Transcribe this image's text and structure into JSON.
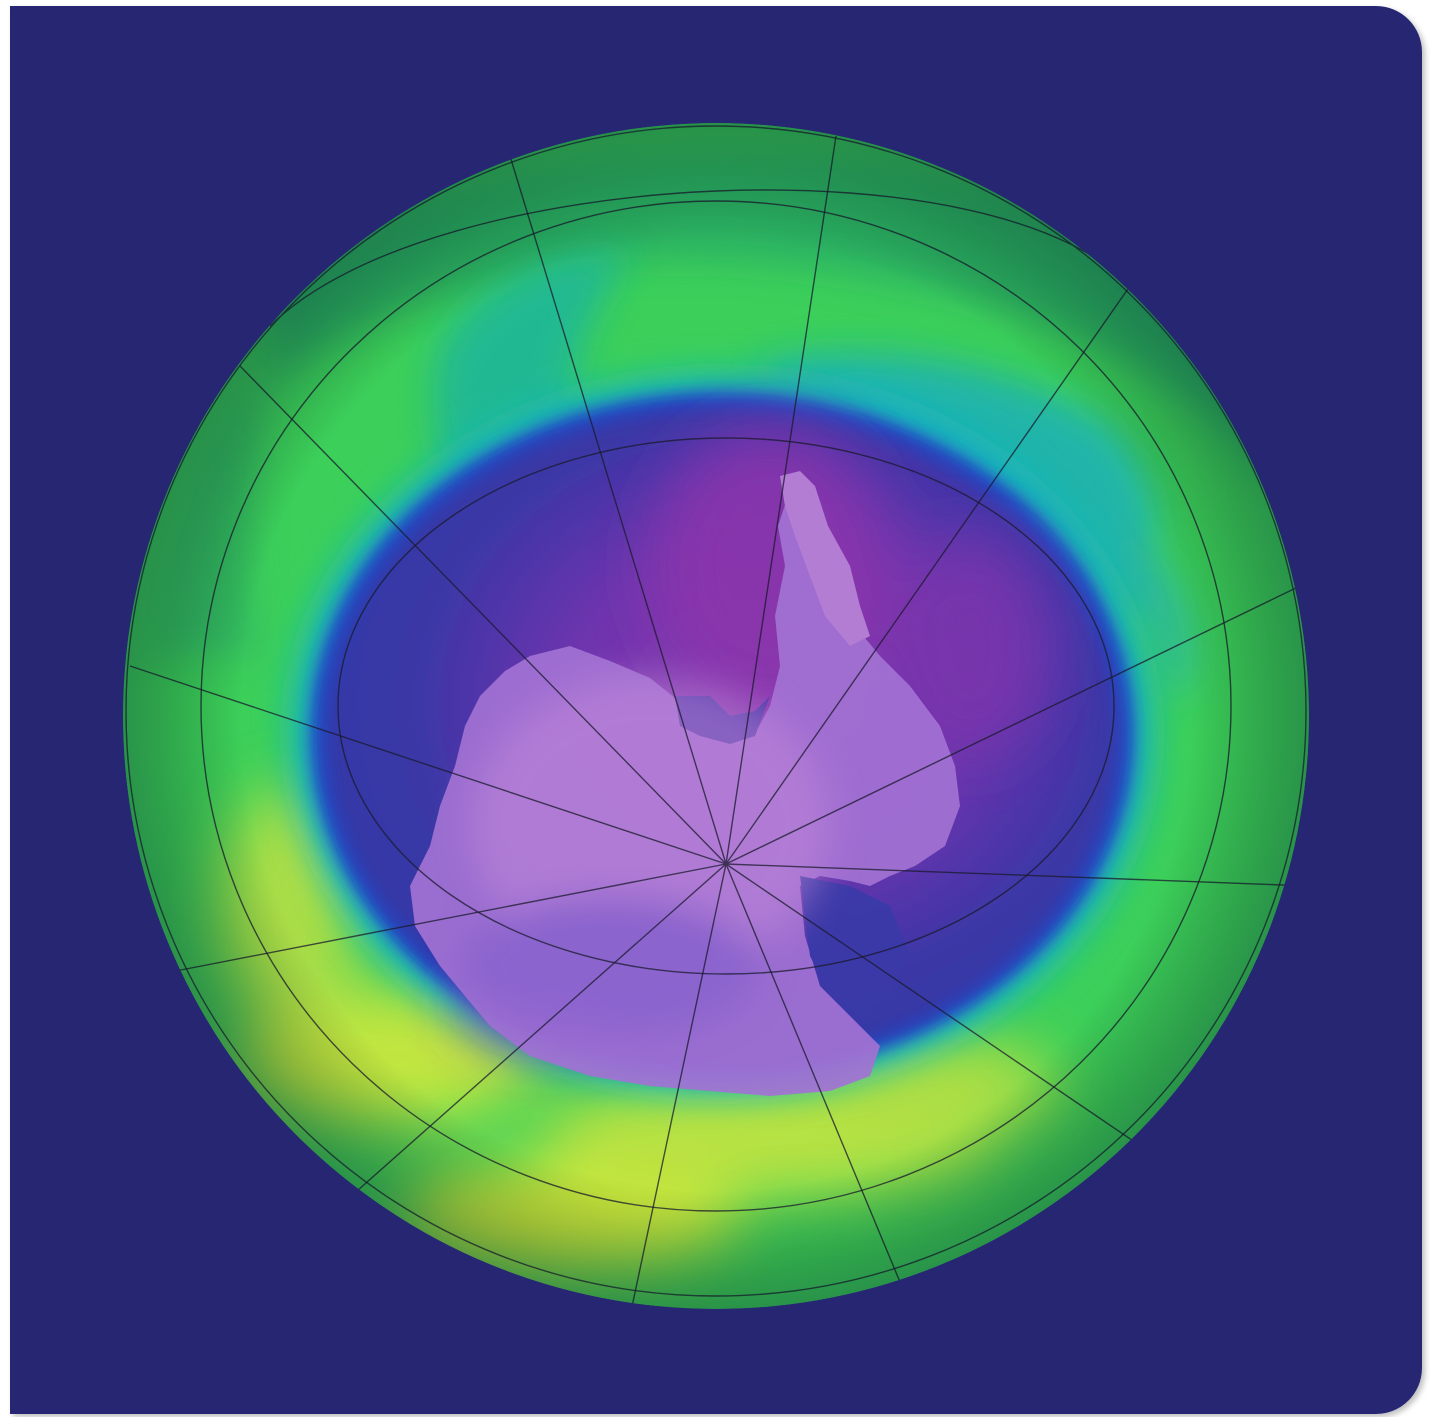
{
  "figure": {
    "subject": "ozone-concentration-south-polar-view",
    "projection": "orthographic-south-pole",
    "graticule": true,
    "meridian_count": 12,
    "parallel_count": 4
  },
  "colors": {
    "background": "#262673",
    "frame_edge": "#d8d8e0",
    "ozone_high": "#d4e63c",
    "ozone_mid_high": "#4cc447",
    "ozone_mid": "#3ccf5a",
    "ozone_teal": "#1fb3b8",
    "ozone_low_edge": "#2a4fc8",
    "ozone_low": "#3a3aa8",
    "ozone_lowest": "#8a3fb0",
    "continent": "#b27ad6",
    "graticule": "#1a1a2e"
  }
}
